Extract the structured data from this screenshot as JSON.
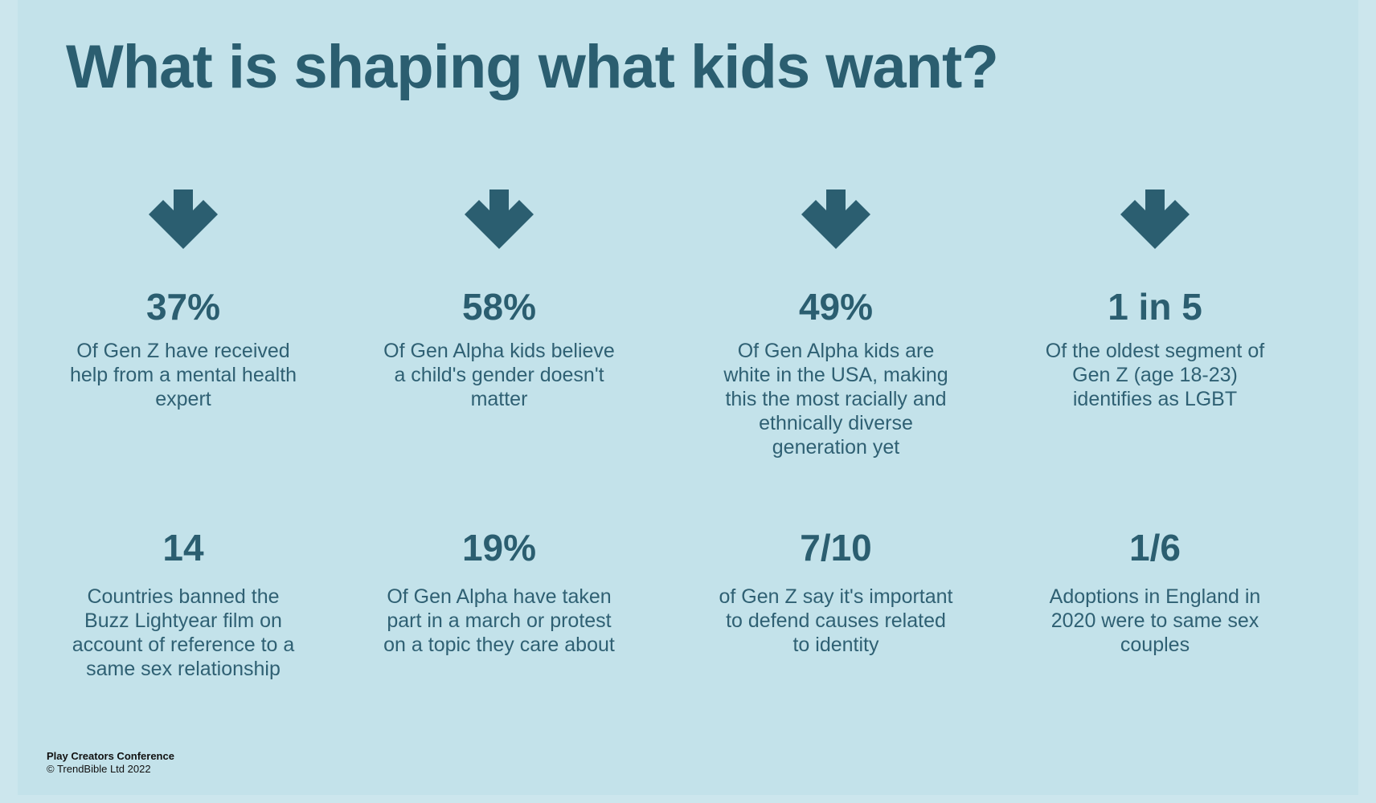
{
  "title": "What is shaping what kids want?",
  "colors": {
    "background": "#c3e2ea",
    "accent": "#2b5e70"
  },
  "stats": [
    {
      "value": "37%",
      "desc": "Of Gen Z have received help from a mental health expert",
      "icon": "arrow-down-icon"
    },
    {
      "value": "58%",
      "desc": "Of Gen Alpha kids believe a child's gender doesn't matter",
      "icon": "arrow-down-icon"
    },
    {
      "value": "49%",
      "desc": "Of Gen Alpha kids are white in the USA, making this the most racially and ethnically diverse generation yet",
      "icon": "arrow-down-icon"
    },
    {
      "value": "1 in 5",
      "desc": "Of the oldest segment of Gen Z (age 18-23) identifies as LGBT",
      "icon": "arrow-down-icon"
    },
    {
      "value": "14",
      "desc": "Countries banned the Buzz Lightyear film on account of reference to a same sex relationship"
    },
    {
      "value": "19%",
      "desc": "Of Gen Alpha have taken part in a march or protest on a topic they care about"
    },
    {
      "value": "7/10",
      "desc": "of Gen Z say it's important to defend causes related to identity"
    },
    {
      "value": "1/6",
      "desc": "Adoptions in England in 2020 were to same sex couples"
    }
  ],
  "footer": {
    "org": "Play Creators Conference",
    "copyright": "© TrendBible Ltd 2022"
  }
}
